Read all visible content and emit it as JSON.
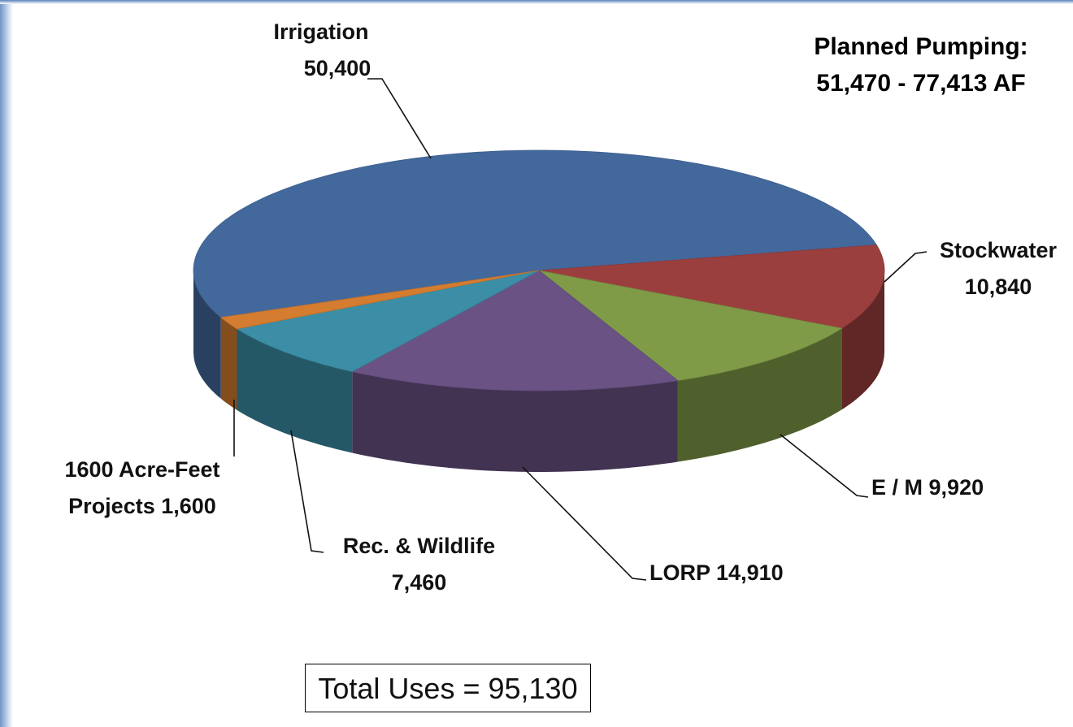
{
  "chart_data": {
    "type": "pie",
    "categories": [
      "Irrigation",
      "Stockwater",
      "E / M",
      "LORP",
      "Rec. & Wildlife",
      "1600 Acre-Feet Projects"
    ],
    "values": [
      50400,
      10840,
      9920,
      14910,
      7460,
      1600
    ],
    "value_labels": [
      "50,400",
      "10,840",
      "9,920",
      "14,910",
      "7,460",
      "1,600"
    ],
    "colors": [
      "#43689c",
      "#9b3f3e",
      "#7f9b48",
      "#6a5285",
      "#3b8ea5",
      "#d47c30"
    ],
    "annotations": [
      "Planned Pumping:",
      "51,470 - 77,413 AF",
      "Total Uses = 95,130"
    ]
  }
}
